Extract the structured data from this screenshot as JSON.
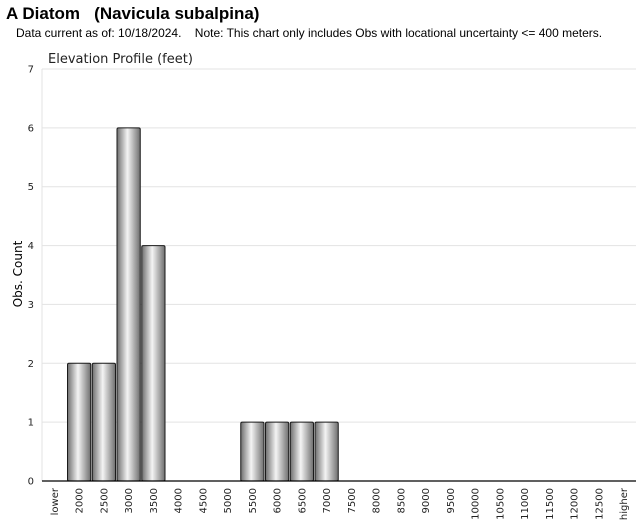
{
  "page": {
    "title": "A Diatom   (Navicula subalpina)",
    "subtitle": "Data current as of: 10/18/2024.    Note: This chart only includes Obs with locational uncertainty <= 400 meters."
  },
  "colors": {
    "bar_dark": "#6e6e6e",
    "bar_light": "#f4f4f4",
    "bar_outline": "#1a1a1a",
    "grid": "#e3e3e3",
    "axis": "#000000"
  },
  "chart_data": {
    "type": "bar",
    "title": "Elevation Profile (feet)",
    "xlabel": "",
    "ylabel": "Obs. Count",
    "ylim": [
      0,
      7
    ],
    "yticks": [
      0,
      1,
      2,
      3,
      4,
      5,
      6,
      7
    ],
    "grid": true,
    "categories": [
      "lower",
      "2000",
      "2500",
      "3000",
      "3500",
      "4000",
      "4500",
      "5000",
      "5500",
      "6000",
      "6500",
      "7000",
      "7500",
      "8000",
      "8500",
      "9000",
      "9500",
      "10000",
      "10500",
      "11000",
      "11500",
      "12000",
      "12500",
      "higher"
    ],
    "values": [
      0,
      2,
      2,
      6,
      4,
      0,
      0,
      0,
      1,
      1,
      1,
      1,
      0,
      0,
      0,
      0,
      0,
      0,
      0,
      0,
      0,
      0,
      0,
      0
    ]
  }
}
